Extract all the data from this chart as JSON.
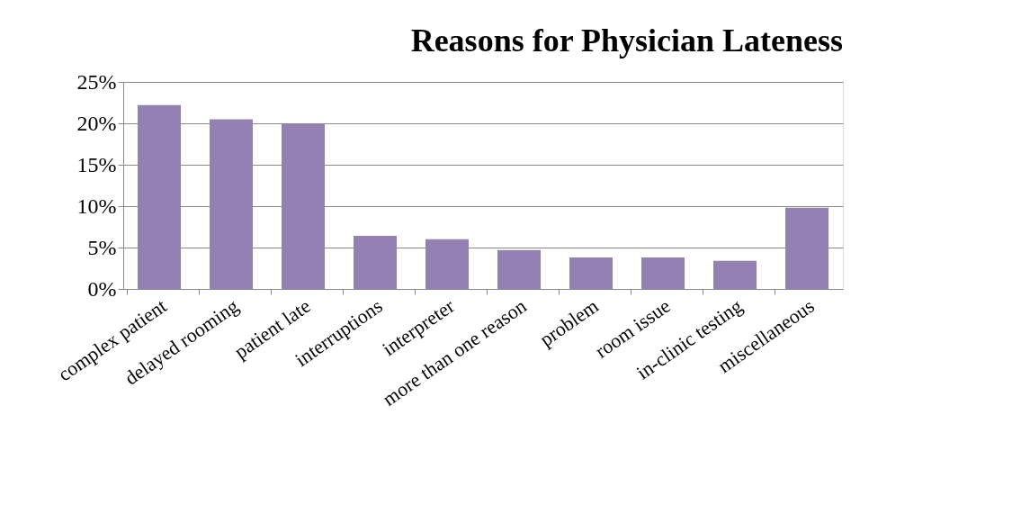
{
  "chart_data": {
    "type": "bar",
    "title": "Reasons for Physician Lateness",
    "categories": [
      "complex patient",
      "delayed rooming",
      "patient late",
      "interruptions",
      "interpreter",
      "more than one reason",
      "problem",
      "room issue",
      "in-clinic testing",
      "miscellaneous"
    ],
    "values": [
      22.2,
      20.5,
      20.0,
      6.4,
      6.0,
      4.7,
      3.8,
      3.8,
      3.4,
      9.8
    ],
    "color": "#9580b4",
    "ylim": [
      0,
      25
    ],
    "yticks": [
      {
        "value": 0,
        "label": "0%"
      },
      {
        "value": 5,
        "label": "5%"
      },
      {
        "value": 10,
        "label": "10%"
      },
      {
        "value": 15,
        "label": "15%"
      },
      {
        "value": 20,
        "label": "20%"
      },
      {
        "value": 25,
        "label": "25%"
      }
    ],
    "grid": "y"
  }
}
